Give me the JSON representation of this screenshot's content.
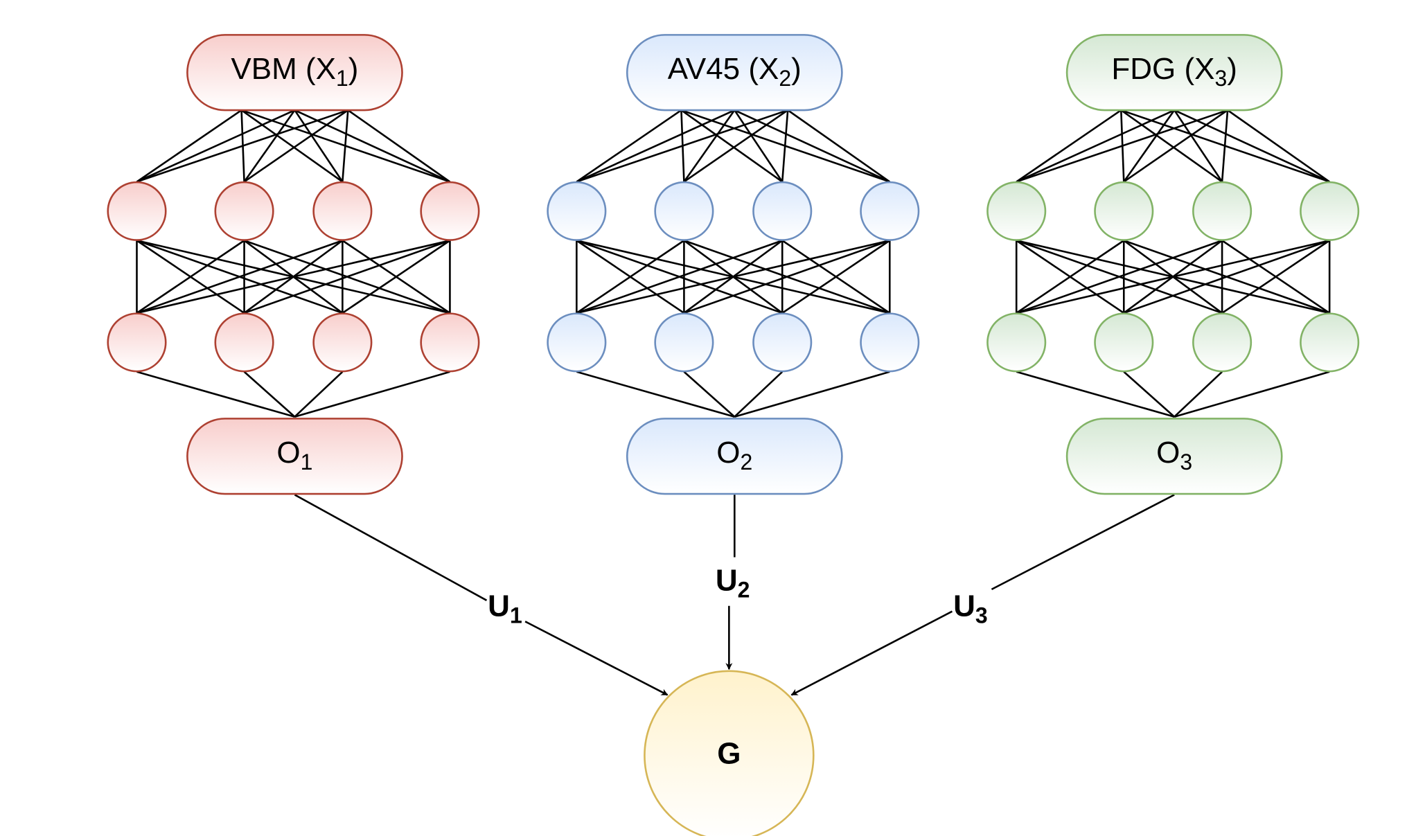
{
  "branches": [
    {
      "id": "vbm",
      "input": {
        "main": "VBM (X",
        "sub": "1",
        "tail": ")"
      },
      "output": {
        "main": "O",
        "sub": "1"
      },
      "weight": {
        "main": "U",
        "sub": "1"
      },
      "stroke": "#ae4132",
      "fill_top": "#f8cecc",
      "fill_bottom": "#ffffff"
    },
    {
      "id": "av45",
      "input": {
        "main": "AV45 (X",
        "sub": "2",
        "tail": ")"
      },
      "output": {
        "main": "O",
        "sub": "2"
      },
      "weight": {
        "main": "U",
        "sub": "2"
      },
      "stroke": "#6c8ebf",
      "fill_top": "#dae8fc",
      "fill_bottom": "#ffffff"
    },
    {
      "id": "fdg",
      "input": {
        "main": "FDG (X",
        "sub": "3",
        "tail": ")"
      },
      "output": {
        "main": "O",
        "sub": "3"
      },
      "weight": {
        "main": "U",
        "sub": "3"
      },
      "stroke": "#82b366",
      "fill_top": "#d5e8d4",
      "fill_bottom": "#ffffff"
    }
  ],
  "hidden_layers": 2,
  "nodes_per_layer": 4,
  "target": {
    "label": "G",
    "stroke": "#d6b656",
    "fill_top": "#fff2cc",
    "fill_bottom": "#ffffff"
  }
}
